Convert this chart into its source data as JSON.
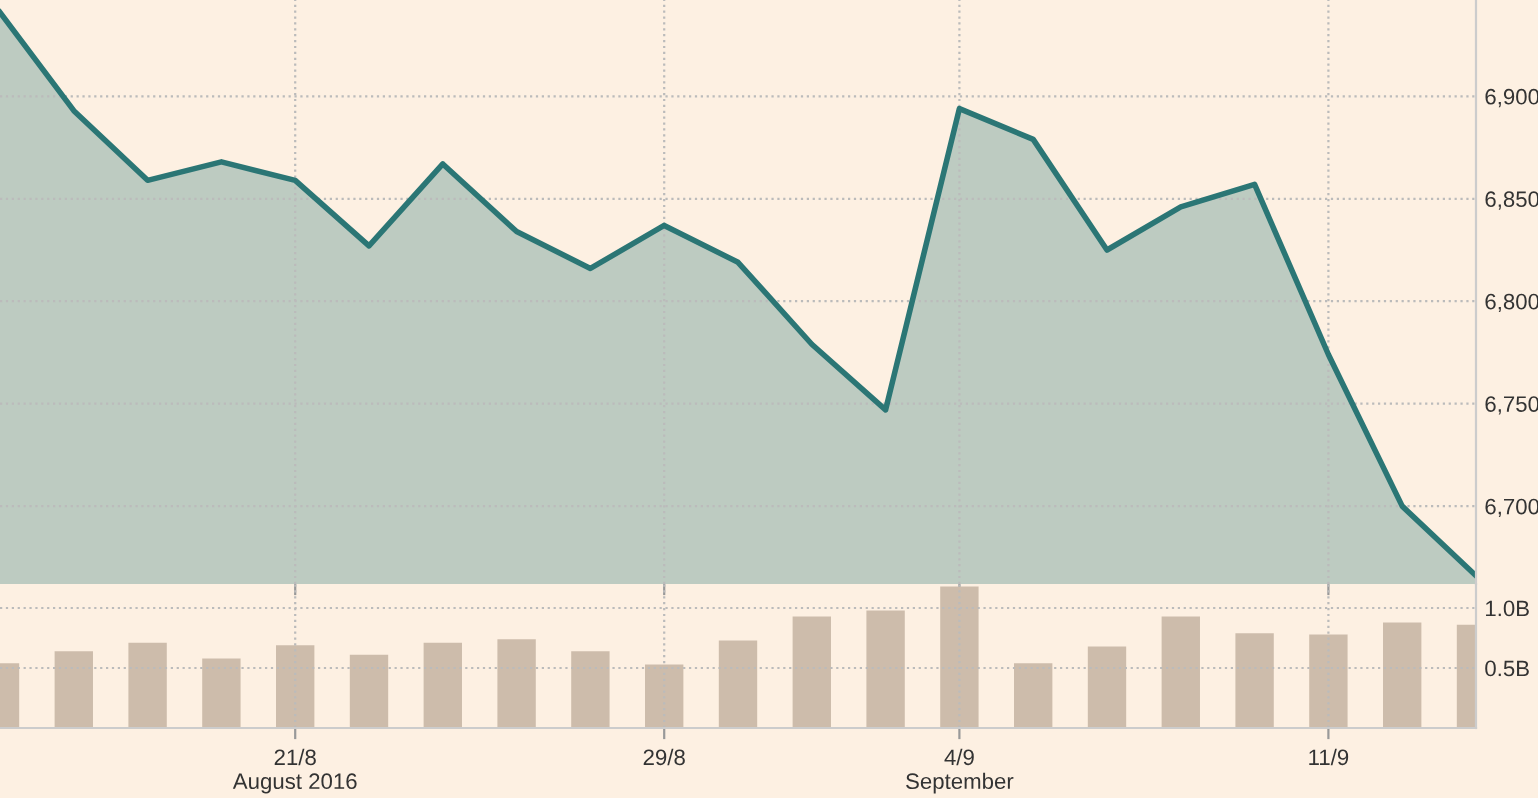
{
  "chart_data": [
    {
      "type": "area",
      "categories": [
        null,
        null,
        null,
        null,
        null,
        null,
        null,
        null,
        null,
        null,
        null,
        null,
        null,
        null,
        null,
        null,
        null,
        null,
        null,
        null,
        null
      ],
      "series": [
        {
          "color": "#2b7675",
          "values": [
            6941,
            6893,
            6859,
            6868,
            6859,
            6827,
            6867,
            6834,
            6816,
            6837,
            6819,
            6779,
            6747,
            6894,
            6879,
            6825,
            6846,
            6857,
            6774,
            6700,
            6666
          ]
        }
      ],
      "ylim": [
        6662,
        6947
      ],
      "yticks": [
        {
          "value": 6700,
          "label": "6,700"
        },
        {
          "value": 6750,
          "label": "6,750"
        },
        {
          "value": 6800,
          "label": "6,800"
        },
        {
          "value": 6850,
          "label": "6,850"
        },
        {
          "value": 6900,
          "label": "6,900"
        }
      ],
      "grid": true,
      "tick_labels": "y"
    },
    {
      "type": "bar",
      "categories": [
        null,
        null,
        null,
        null,
        "21/8\nAugust 2016",
        null,
        null,
        null,
        null,
        "29/8",
        null,
        null,
        null,
        "4/9\nSeptember",
        null,
        null,
        null,
        null,
        "11/9",
        null,
        null
      ],
      "series": [
        {
          "color": "#cdbcab",
          "values": [
            0.54,
            0.64,
            0.71,
            0.58,
            0.69,
            0.61,
            0.71,
            0.74,
            0.64,
            0.53,
            0.73,
            0.93,
            0.98,
            1.18,
            0.54,
            0.68,
            0.93,
            0.79,
            0.78,
            0.88,
            0.86
          ]
        }
      ],
      "ylim": [
        0,
        1.2
      ],
      "yticks": [
        {
          "value": 0.5,
          "label": "0.5B"
        },
        {
          "value": 1,
          "label": "1.0B"
        }
      ],
      "grid": true
    }
  ]
}
